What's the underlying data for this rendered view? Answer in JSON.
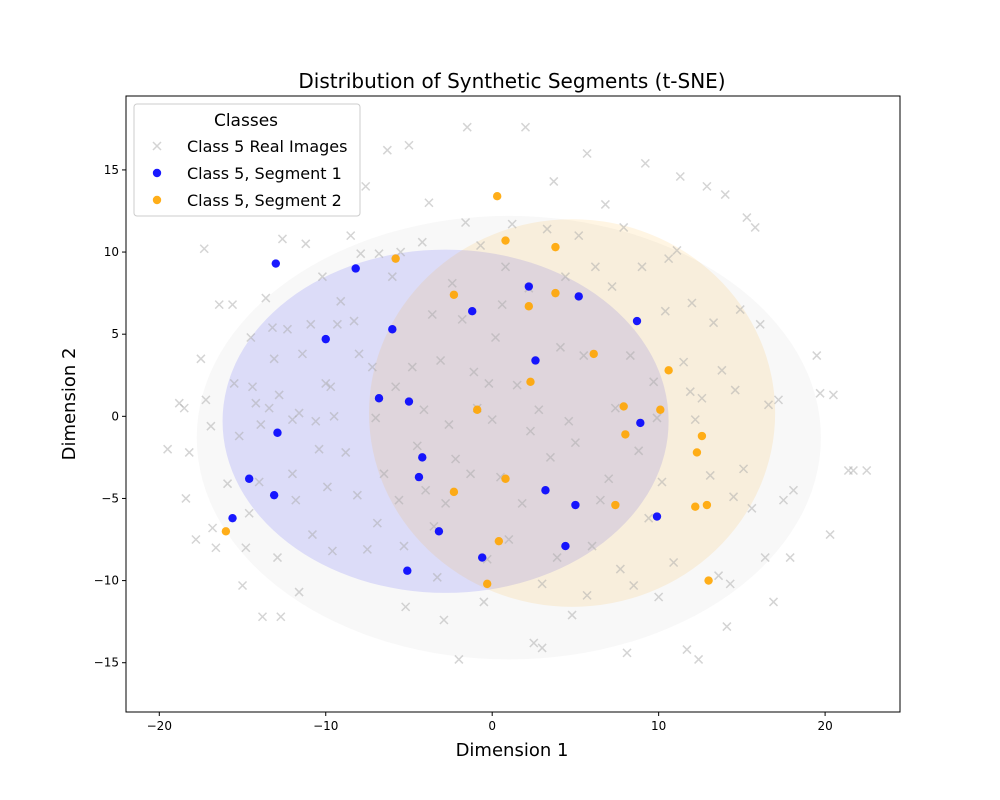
{
  "chart_data": {
    "type": "scatter",
    "title": "Distribution of Synthetic Segments (t-SNE)",
    "xlabel": "Dimension 1",
    "ylabel": "Dimension 2",
    "xlim": [
      -22,
      24.5
    ],
    "ylim": [
      -18,
      19.5
    ],
    "xticks": [
      -20,
      -10,
      0,
      10,
      20
    ],
    "yticks": [
      -15,
      -10,
      -5,
      0,
      5,
      10,
      15
    ],
    "grid": false,
    "legend": {
      "title": "Classes",
      "position": "top-left"
    },
    "ellipses": [
      {
        "series": "Class 5 Real Images",
        "center": [
          1.0,
          -1.3
        ],
        "width": 37.5,
        "height": 27.0,
        "color": "#bdbdbd"
      },
      {
        "series": "Class 5, Segment 1",
        "center": [
          -2.8,
          -0.3
        ],
        "width": 26.8,
        "height": 20.9,
        "color": "#0000ff"
      },
      {
        "series": "Class 5, Segment 2",
        "center": [
          4.8,
          0.2
        ],
        "width": 24.4,
        "height": 23.6,
        "color": "#ffa500"
      }
    ],
    "series": [
      {
        "name": "Class 5 Real Images",
        "marker": "x",
        "color": "#a9a9a9",
        "points": [
          [
            -19.5,
            -2.0
          ],
          [
            -18.8,
            0.8
          ],
          [
            -18.5,
            0.5
          ],
          [
            -18.2,
            -2.2
          ],
          [
            -18.4,
            -5.0
          ],
          [
            -17.8,
            -7.5
          ],
          [
            -17.3,
            10.2
          ],
          [
            -17.5,
            3.5
          ],
          [
            -17.2,
            1.0
          ],
          [
            -16.9,
            -0.6
          ],
          [
            -16.8,
            -6.8
          ],
          [
            -16.6,
            -8.0
          ],
          [
            -15.6,
            6.8
          ],
          [
            -15.5,
            2.0
          ],
          [
            -15.2,
            -1.2
          ],
          [
            -15.0,
            -10.3
          ],
          [
            -14.8,
            -8.0
          ],
          [
            -14.5,
            4.8
          ],
          [
            -14.4,
            1.8
          ],
          [
            -14.2,
            0.8
          ],
          [
            -14.0,
            -4.0
          ],
          [
            -13.8,
            -12.2
          ],
          [
            -13.6,
            7.2
          ],
          [
            -13.4,
            0.5
          ],
          [
            -13.2,
            5.4
          ],
          [
            -13.1,
            3.5
          ],
          [
            -12.9,
            -8.6
          ],
          [
            -12.8,
            1.3
          ],
          [
            -12.7,
            -12.2
          ],
          [
            -12.6,
            10.8
          ],
          [
            -12.3,
            5.3
          ],
          [
            -12.0,
            -3.5
          ],
          [
            -11.8,
            -5.1
          ],
          [
            -11.6,
            -10.7
          ],
          [
            -11.6,
            0.2
          ],
          [
            -11.4,
            3.8
          ],
          [
            -11.2,
            10.5
          ],
          [
            -10.9,
            5.6
          ],
          [
            -10.6,
            -0.3
          ],
          [
            -10.4,
            -2.0
          ],
          [
            -10.2,
            8.5
          ],
          [
            -10.0,
            2.0
          ],
          [
            -9.9,
            -4.3
          ],
          [
            -9.7,
            1.8
          ],
          [
            -9.6,
            -8.2
          ],
          [
            -9.3,
            5.6
          ],
          [
            -9.1,
            7.0
          ],
          [
            -8.8,
            -2.2
          ],
          [
            -8.5,
            11.0
          ],
          [
            -8.3,
            5.8
          ],
          [
            -8.1,
            -4.8
          ],
          [
            -7.9,
            9.9
          ],
          [
            -7.6,
            14.0
          ],
          [
            -7.5,
            -8.1
          ],
          [
            -7.2,
            3.0
          ],
          [
            -7.0,
            -0.1
          ],
          [
            -6.8,
            9.9
          ],
          [
            -6.5,
            -3.5
          ],
          [
            -6.3,
            16.2
          ],
          [
            -6.0,
            8.5
          ],
          [
            -5.8,
            1.8
          ],
          [
            -5.6,
            -5.1
          ],
          [
            -5.5,
            10.0
          ],
          [
            -5.3,
            -7.9
          ],
          [
            -5.2,
            -11.6
          ],
          [
            -5.0,
            16.5
          ],
          [
            -4.8,
            3.0
          ],
          [
            -4.5,
            -1.8
          ],
          [
            -4.2,
            10.6
          ],
          [
            -4.0,
            -4.5
          ],
          [
            -3.8,
            13.0
          ],
          [
            -3.6,
            6.2
          ],
          [
            -3.5,
            -6.7
          ],
          [
            -3.3,
            -9.8
          ],
          [
            -3.1,
            3.4
          ],
          [
            -2.9,
            -12.4
          ],
          [
            -2.6,
            -0.5
          ],
          [
            -2.4,
            8.1
          ],
          [
            -2.2,
            -2.6
          ],
          [
            -2.0,
            -14.8
          ],
          [
            -1.8,
            5.9
          ],
          [
            -1.6,
            11.8
          ],
          [
            -1.5,
            17.6
          ],
          [
            -1.3,
            -3.5
          ],
          [
            -1.1,
            2.7
          ],
          [
            -0.9,
            0.5
          ],
          [
            -0.7,
            10.4
          ],
          [
            -0.5,
            -11.3
          ],
          [
            -0.3,
            -8.7
          ],
          [
            -0.2,
            2.0
          ],
          [
            0.0,
            -0.2
          ],
          [
            0.2,
            4.8
          ],
          [
            0.5,
            -3.7
          ],
          [
            0.8,
            9.1
          ],
          [
            1.0,
            -7.5
          ],
          [
            1.2,
            11.7
          ],
          [
            1.5,
            1.9
          ],
          [
            1.8,
            -5.3
          ],
          [
            2.0,
            17.6
          ],
          [
            2.2,
            7.8
          ],
          [
            2.3,
            -0.9
          ],
          [
            2.5,
            -13.8
          ],
          [
            2.8,
            0.4
          ],
          [
            3.0,
            -14.1
          ],
          [
            3.3,
            11.4
          ],
          [
            3.5,
            -2.5
          ],
          [
            3.7,
            14.3
          ],
          [
            3.9,
            -8.6
          ],
          [
            4.1,
            4.2
          ],
          [
            4.4,
            8.5
          ],
          [
            4.6,
            -0.3
          ],
          [
            4.8,
            -12.1
          ],
          [
            5.0,
            -1.6
          ],
          [
            5.2,
            11.0
          ],
          [
            5.5,
            3.7
          ],
          [
            5.7,
            16.0
          ],
          [
            6.0,
            -7.9
          ],
          [
            6.2,
            9.1
          ],
          [
            6.5,
            -5.1
          ],
          [
            6.8,
            12.9
          ],
          [
            7.0,
            -3.8
          ],
          [
            7.2,
            7.9
          ],
          [
            7.4,
            0.5
          ],
          [
            7.7,
            -9.3
          ],
          [
            7.9,
            11.5
          ],
          [
            8.1,
            -14.4
          ],
          [
            8.3,
            3.7
          ],
          [
            8.5,
            -10.3
          ],
          [
            8.8,
            -2.1
          ],
          [
            9.0,
            9.1
          ],
          [
            9.2,
            15.4
          ],
          [
            9.4,
            -6.2
          ],
          [
            9.7,
            2.1
          ],
          [
            10.0,
            -11.0
          ],
          [
            10.2,
            -4.0
          ],
          [
            10.4,
            6.4
          ],
          [
            10.6,
            9.6
          ],
          [
            10.9,
            -8.9
          ],
          [
            11.1,
            10.1
          ],
          [
            11.3,
            14.6
          ],
          [
            11.5,
            3.3
          ],
          [
            11.7,
            -14.2
          ],
          [
            12.0,
            6.9
          ],
          [
            12.2,
            -0.2
          ],
          [
            12.4,
            -14.8
          ],
          [
            12.6,
            1.1
          ],
          [
            12.9,
            14.0
          ],
          [
            13.1,
            -3.6
          ],
          [
            13.3,
            5.7
          ],
          [
            13.6,
            -9.7
          ],
          [
            13.8,
            2.8
          ],
          [
            14.0,
            13.5
          ],
          [
            14.1,
            -12.8
          ],
          [
            14.3,
            -10.2
          ],
          [
            14.6,
            1.6
          ],
          [
            14.9,
            6.5
          ],
          [
            15.1,
            -3.2
          ],
          [
            15.3,
            12.1
          ],
          [
            15.6,
            -5.6
          ],
          [
            15.8,
            11.5
          ],
          [
            16.1,
            5.6
          ],
          [
            16.4,
            -8.6
          ],
          [
            16.6,
            0.7
          ],
          [
            16.9,
            -11.3
          ],
          [
            17.2,
            1.0
          ],
          [
            17.5,
            -5.1
          ],
          [
            17.9,
            -8.6
          ],
          [
            18.1,
            -4.5
          ],
          [
            19.5,
            3.7
          ],
          [
            19.7,
            1.4
          ],
          [
            20.3,
            -7.2
          ],
          [
            20.5,
            1.3
          ],
          [
            21.4,
            -3.3
          ],
          [
            21.7,
            -3.3
          ],
          [
            22.5,
            -3.3
          ],
          [
            -13.9,
            -0.5
          ],
          [
            -15.9,
            -4.1
          ],
          [
            -14.6,
            -5.9
          ],
          [
            -12.0,
            -0.2
          ],
          [
            -9.5,
            0.0
          ],
          [
            -8.0,
            3.8
          ],
          [
            -6.9,
            -6.5
          ],
          [
            -4.1,
            0.4
          ],
          [
            -2.8,
            -5.3
          ],
          [
            0.6,
            6.8
          ],
          [
            3.0,
            -10.2
          ],
          [
            5.7,
            -10.9
          ],
          [
            11.9,
            1.5
          ],
          [
            14.5,
            -4.9
          ],
          [
            9.9,
            -0.1
          ],
          [
            -10.8,
            -7.2
          ],
          [
            -16.4,
            6.8
          ]
        ]
      },
      {
        "name": "Class 5, Segment 1",
        "marker": "o",
        "color": "#0000ff",
        "points": [
          [
            -13.0,
            9.3
          ],
          [
            -8.2,
            9.0
          ],
          [
            -10.0,
            4.7
          ],
          [
            -6.0,
            5.3
          ],
          [
            -1.2,
            6.4
          ],
          [
            2.2,
            7.9
          ],
          [
            5.2,
            7.3
          ],
          [
            8.7,
            5.8
          ],
          [
            2.6,
            3.4
          ],
          [
            -6.8,
            1.1
          ],
          [
            -5.0,
            0.9
          ],
          [
            -12.9,
            -1.0
          ],
          [
            -4.2,
            -2.5
          ],
          [
            8.9,
            -0.4
          ],
          [
            -14.6,
            -3.8
          ],
          [
            -4.4,
            -3.7
          ],
          [
            3.2,
            -4.5
          ],
          [
            5.0,
            -5.4
          ],
          [
            -13.1,
            -4.8
          ],
          [
            -15.6,
            -6.2
          ],
          [
            -3.2,
            -7.0
          ],
          [
            9.9,
            -6.1
          ],
          [
            4.4,
            -7.9
          ],
          [
            -0.6,
            -8.6
          ],
          [
            -5.1,
            -9.4
          ]
        ]
      },
      {
        "name": "Class 5, Segment 2",
        "marker": "o",
        "color": "#ffa500",
        "points": [
          [
            0.3,
            13.4
          ],
          [
            0.8,
            10.7
          ],
          [
            3.8,
            10.3
          ],
          [
            -5.8,
            9.6
          ],
          [
            -2.3,
            7.4
          ],
          [
            3.8,
            7.5
          ],
          [
            2.2,
            6.7
          ],
          [
            6.1,
            3.8
          ],
          [
            10.6,
            2.8
          ],
          [
            2.3,
            2.1
          ],
          [
            7.9,
            0.6
          ],
          [
            10.1,
            0.4
          ],
          [
            -0.9,
            0.4
          ],
          [
            8.0,
            -1.1
          ],
          [
            12.6,
            -1.2
          ],
          [
            12.3,
            -2.2
          ],
          [
            0.8,
            -3.8
          ],
          [
            -2.3,
            -4.6
          ],
          [
            7.4,
            -5.4
          ],
          [
            12.9,
            -5.4
          ],
          [
            12.2,
            -5.5
          ],
          [
            -16.0,
            -7.0
          ],
          [
            0.4,
            -7.6
          ],
          [
            -0.3,
            -10.2
          ],
          [
            13.0,
            -10.0
          ]
        ]
      }
    ]
  }
}
